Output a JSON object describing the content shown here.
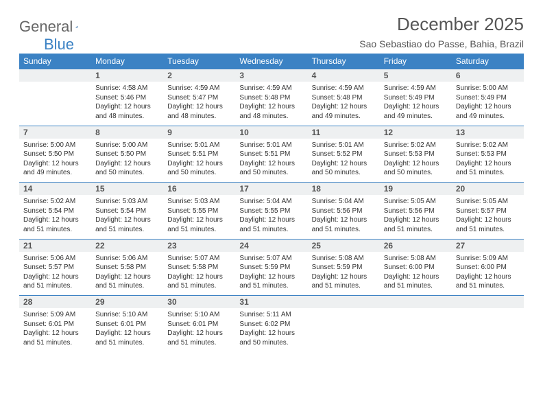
{
  "logo": {
    "text1": "General",
    "text2": "Blue"
  },
  "title": "December 2025",
  "location": "Sao Sebastiao do Passe, Bahia, Brazil",
  "colors": {
    "header_bg": "#3b82c4",
    "header_fg": "#ffffff",
    "daynum_bg": "#eef0f1",
    "border": "#3b82c4",
    "text": "#333333",
    "title": "#555555"
  },
  "weekdays": [
    "Sunday",
    "Monday",
    "Tuesday",
    "Wednesday",
    "Thursday",
    "Friday",
    "Saturday"
  ],
  "weeks": [
    {
      "nums": [
        "",
        "1",
        "2",
        "3",
        "4",
        "5",
        "6"
      ],
      "cells": [
        null,
        {
          "sunrise": "Sunrise: 4:58 AM",
          "sunset": "Sunset: 5:46 PM",
          "day1": "Daylight: 12 hours",
          "day2": "and 48 minutes."
        },
        {
          "sunrise": "Sunrise: 4:59 AM",
          "sunset": "Sunset: 5:47 PM",
          "day1": "Daylight: 12 hours",
          "day2": "and 48 minutes."
        },
        {
          "sunrise": "Sunrise: 4:59 AM",
          "sunset": "Sunset: 5:48 PM",
          "day1": "Daylight: 12 hours",
          "day2": "and 48 minutes."
        },
        {
          "sunrise": "Sunrise: 4:59 AM",
          "sunset": "Sunset: 5:48 PM",
          "day1": "Daylight: 12 hours",
          "day2": "and 49 minutes."
        },
        {
          "sunrise": "Sunrise: 4:59 AM",
          "sunset": "Sunset: 5:49 PM",
          "day1": "Daylight: 12 hours",
          "day2": "and 49 minutes."
        },
        {
          "sunrise": "Sunrise: 5:00 AM",
          "sunset": "Sunset: 5:49 PM",
          "day1": "Daylight: 12 hours",
          "day2": "and 49 minutes."
        }
      ]
    },
    {
      "nums": [
        "7",
        "8",
        "9",
        "10",
        "11",
        "12",
        "13"
      ],
      "cells": [
        {
          "sunrise": "Sunrise: 5:00 AM",
          "sunset": "Sunset: 5:50 PM",
          "day1": "Daylight: 12 hours",
          "day2": "and 49 minutes."
        },
        {
          "sunrise": "Sunrise: 5:00 AM",
          "sunset": "Sunset: 5:50 PM",
          "day1": "Daylight: 12 hours",
          "day2": "and 50 minutes."
        },
        {
          "sunrise": "Sunrise: 5:01 AM",
          "sunset": "Sunset: 5:51 PM",
          "day1": "Daylight: 12 hours",
          "day2": "and 50 minutes."
        },
        {
          "sunrise": "Sunrise: 5:01 AM",
          "sunset": "Sunset: 5:51 PM",
          "day1": "Daylight: 12 hours",
          "day2": "and 50 minutes."
        },
        {
          "sunrise": "Sunrise: 5:01 AM",
          "sunset": "Sunset: 5:52 PM",
          "day1": "Daylight: 12 hours",
          "day2": "and 50 minutes."
        },
        {
          "sunrise": "Sunrise: 5:02 AM",
          "sunset": "Sunset: 5:53 PM",
          "day1": "Daylight: 12 hours",
          "day2": "and 50 minutes."
        },
        {
          "sunrise": "Sunrise: 5:02 AM",
          "sunset": "Sunset: 5:53 PM",
          "day1": "Daylight: 12 hours",
          "day2": "and 51 minutes."
        }
      ]
    },
    {
      "nums": [
        "14",
        "15",
        "16",
        "17",
        "18",
        "19",
        "20"
      ],
      "cells": [
        {
          "sunrise": "Sunrise: 5:02 AM",
          "sunset": "Sunset: 5:54 PM",
          "day1": "Daylight: 12 hours",
          "day2": "and 51 minutes."
        },
        {
          "sunrise": "Sunrise: 5:03 AM",
          "sunset": "Sunset: 5:54 PM",
          "day1": "Daylight: 12 hours",
          "day2": "and 51 minutes."
        },
        {
          "sunrise": "Sunrise: 5:03 AM",
          "sunset": "Sunset: 5:55 PM",
          "day1": "Daylight: 12 hours",
          "day2": "and 51 minutes."
        },
        {
          "sunrise": "Sunrise: 5:04 AM",
          "sunset": "Sunset: 5:55 PM",
          "day1": "Daylight: 12 hours",
          "day2": "and 51 minutes."
        },
        {
          "sunrise": "Sunrise: 5:04 AM",
          "sunset": "Sunset: 5:56 PM",
          "day1": "Daylight: 12 hours",
          "day2": "and 51 minutes."
        },
        {
          "sunrise": "Sunrise: 5:05 AM",
          "sunset": "Sunset: 5:56 PM",
          "day1": "Daylight: 12 hours",
          "day2": "and 51 minutes."
        },
        {
          "sunrise": "Sunrise: 5:05 AM",
          "sunset": "Sunset: 5:57 PM",
          "day1": "Daylight: 12 hours",
          "day2": "and 51 minutes."
        }
      ]
    },
    {
      "nums": [
        "21",
        "22",
        "23",
        "24",
        "25",
        "26",
        "27"
      ],
      "cells": [
        {
          "sunrise": "Sunrise: 5:06 AM",
          "sunset": "Sunset: 5:57 PM",
          "day1": "Daylight: 12 hours",
          "day2": "and 51 minutes."
        },
        {
          "sunrise": "Sunrise: 5:06 AM",
          "sunset": "Sunset: 5:58 PM",
          "day1": "Daylight: 12 hours",
          "day2": "and 51 minutes."
        },
        {
          "sunrise": "Sunrise: 5:07 AM",
          "sunset": "Sunset: 5:58 PM",
          "day1": "Daylight: 12 hours",
          "day2": "and 51 minutes."
        },
        {
          "sunrise": "Sunrise: 5:07 AM",
          "sunset": "Sunset: 5:59 PM",
          "day1": "Daylight: 12 hours",
          "day2": "and 51 minutes."
        },
        {
          "sunrise": "Sunrise: 5:08 AM",
          "sunset": "Sunset: 5:59 PM",
          "day1": "Daylight: 12 hours",
          "day2": "and 51 minutes."
        },
        {
          "sunrise": "Sunrise: 5:08 AM",
          "sunset": "Sunset: 6:00 PM",
          "day1": "Daylight: 12 hours",
          "day2": "and 51 minutes."
        },
        {
          "sunrise": "Sunrise: 5:09 AM",
          "sunset": "Sunset: 6:00 PM",
          "day1": "Daylight: 12 hours",
          "day2": "and 51 minutes."
        }
      ]
    },
    {
      "nums": [
        "28",
        "29",
        "30",
        "31",
        "",
        "",
        ""
      ],
      "cells": [
        {
          "sunrise": "Sunrise: 5:09 AM",
          "sunset": "Sunset: 6:01 PM",
          "day1": "Daylight: 12 hours",
          "day2": "and 51 minutes."
        },
        {
          "sunrise": "Sunrise: 5:10 AM",
          "sunset": "Sunset: 6:01 PM",
          "day1": "Daylight: 12 hours",
          "day2": "and 51 minutes."
        },
        {
          "sunrise": "Sunrise: 5:10 AM",
          "sunset": "Sunset: 6:01 PM",
          "day1": "Daylight: 12 hours",
          "day2": "and 51 minutes."
        },
        {
          "sunrise": "Sunrise: 5:11 AM",
          "sunset": "Sunset: 6:02 PM",
          "day1": "Daylight: 12 hours",
          "day2": "and 50 minutes."
        },
        null,
        null,
        null
      ]
    }
  ]
}
